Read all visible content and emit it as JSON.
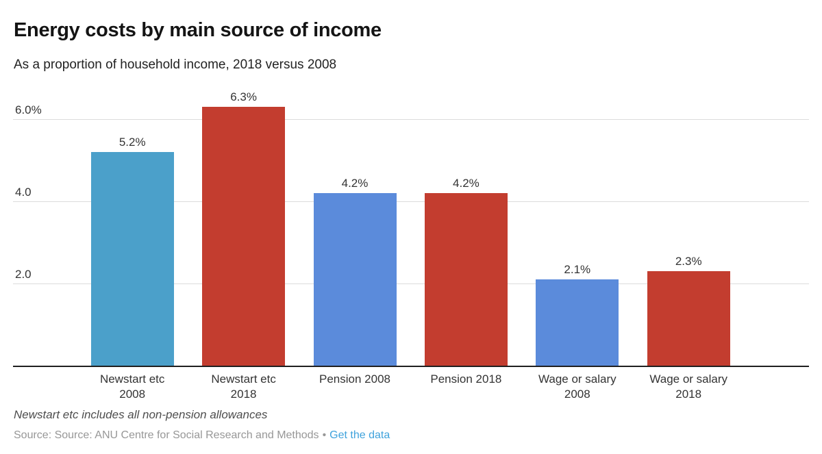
{
  "header": {
    "title": "Energy costs by main source of income",
    "subtitle": "As a proportion of household income, 2018 versus 2008"
  },
  "chart_data": {
    "type": "bar",
    "title": "Energy costs by main source of income",
    "subtitle": "As a proportion of household income, 2018 versus 2008",
    "categories": [
      "Newstart etc 2008",
      "Newstart etc 2018",
      "Pension 2008",
      "Pension 2018",
      "Wage or salary 2008",
      "Wage or salary 2018"
    ],
    "category_lines": [
      [
        "Newstart etc",
        "2008"
      ],
      [
        "Newstart etc",
        "2018"
      ],
      [
        "Pension 2008"
      ],
      [
        "Pension 2018"
      ],
      [
        "Wage or salary",
        "2008"
      ],
      [
        "Wage or salary",
        "2018"
      ]
    ],
    "values": [
      5.2,
      6.3,
      4.2,
      4.2,
      2.1,
      2.3
    ],
    "value_labels": [
      "5.2%",
      "6.3%",
      "4.2%",
      "4.2%",
      "2.1%",
      "2.3%"
    ],
    "bar_colors": [
      "#4ba0ca",
      "#c33d2f",
      "#5b8bdb",
      "#c33d2f",
      "#5b8bdb",
      "#c33d2f"
    ],
    "y_ticks": [
      {
        "value": 2.0,
        "label": "2.0"
      },
      {
        "value": 4.0,
        "label": "4.0"
      },
      {
        "value": 6.0,
        "label": "6.0%"
      }
    ],
    "ylim": [
      0,
      6.5
    ],
    "grid": true,
    "legend": "none",
    "xlabel": "",
    "ylabel": ""
  },
  "footer": {
    "note": "Newstart etc includes all non-pension allowances",
    "source_text": "Source: Source: ANU Centre for Social Research and Methods",
    "separator": "•",
    "link_label": "Get the data"
  },
  "colors": {
    "blue_2008_newstart": "#4ba0ca",
    "blue_2008_other": "#5b8bdb",
    "red_2018": "#c33d2f",
    "gridline": "#dcdcdc",
    "axis": "#1f1f1f",
    "link": "#3fa2dc"
  }
}
